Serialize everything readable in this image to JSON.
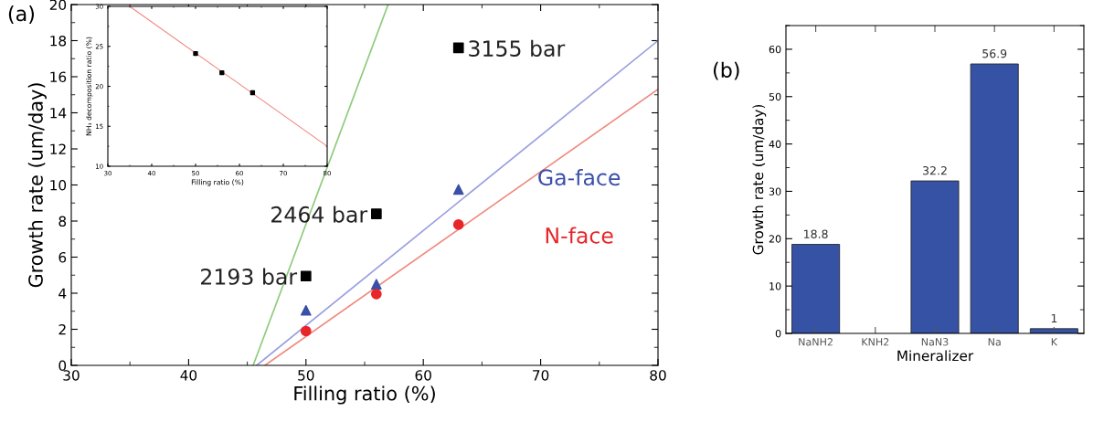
{
  "chart_data": [
    {
      "type": "scatter",
      "title": "(a)",
      "xlabel": "Filling ratio (%)",
      "ylabel": "Growth rate (um/day)",
      "xlim": [
        30,
        80
      ],
      "ylim": [
        0,
        20
      ],
      "xticks": [
        30,
        40,
        50,
        60,
        70,
        80
      ],
      "yticks": [
        0,
        2,
        4,
        6,
        8,
        10,
        12,
        14,
        16,
        18,
        20
      ],
      "grid": false,
      "legend": false,
      "series": [
        {
          "type": "scatter",
          "marker": "square",
          "color": "#000000",
          "x": [
            50,
            56,
            63
          ],
          "values": [
            4.95,
            8.4,
            17.6
          ]
        },
        {
          "type": "scatter",
          "marker": "triangle",
          "name": "Ga-face",
          "color": "#3a4fa8",
          "x": [
            50,
            56,
            63
          ],
          "values": [
            3.05,
            4.5,
            9.75
          ]
        },
        {
          "type": "scatter",
          "marker": "circle",
          "name": "N-face",
          "color": "#e8262a",
          "x": [
            50,
            56,
            63
          ],
          "values": [
            1.9,
            3.95,
            7.8
          ]
        },
        {
          "type": "line",
          "color": "#8ccc7a",
          "x": [
            45.5,
            57.0
          ],
          "values": [
            0,
            20
          ]
        },
        {
          "type": "line",
          "color": "#9a9fe0",
          "x": [
            45.8,
            80
          ],
          "values": [
            0,
            18
          ]
        },
        {
          "type": "line",
          "color": "#f08a80",
          "x": [
            46.5,
            80
          ],
          "values": [
            0,
            15.3
          ]
        }
      ],
      "annotations": [
        {
          "text": "2193 bar",
          "x": 50,
          "y": 4.95
        },
        {
          "text": "2464 bar",
          "x": 56,
          "y": 8.4
        },
        {
          "text": "3155 bar",
          "x": 63,
          "y": 17.6
        }
      ]
    },
    {
      "type": "line",
      "xlabel": "Filling ratio (%)",
      "ylabel": "NH₃ decomposition ratio (%)",
      "xlim": [
        30,
        80
      ],
      "ylim": [
        10,
        30
      ],
      "xticks": [
        30,
        40,
        50,
        60,
        70,
        80
      ],
      "yticks": [
        10,
        15,
        20,
        25,
        30
      ],
      "grid": false,
      "legend": false,
      "series": [
        {
          "type": "line",
          "color": "#f08a80",
          "x": [
            35,
            80
          ],
          "values": [
            30,
            12.5
          ]
        },
        {
          "type": "scatter",
          "marker": "square",
          "color": "#000000",
          "x": [
            50,
            56,
            63
          ],
          "values": [
            24.1,
            21.7,
            19.2
          ]
        }
      ]
    },
    {
      "type": "bar",
      "title": "(b)",
      "xlabel": "Mineralizer",
      "ylabel": "Growth rate (um/day)",
      "categories": [
        "NaNH2",
        "KNH2",
        "NaN3",
        "Na",
        "K"
      ],
      "values": [
        18.8,
        null,
        32.2,
        56.9,
        1
      ],
      "color": "#3652a5",
      "ylim": [
        0,
        65
      ],
      "yticks": [
        0,
        10,
        20,
        30,
        40,
        50,
        60
      ],
      "data_labels": true,
      "grid": false,
      "legend": false
    }
  ]
}
